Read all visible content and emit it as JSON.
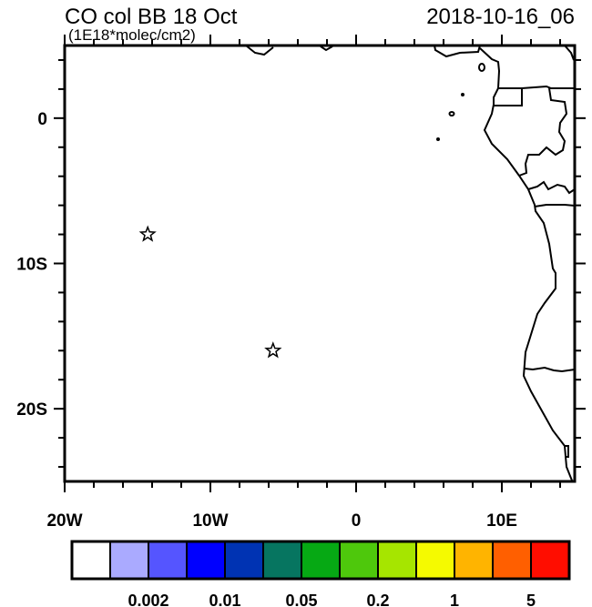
{
  "title": "CO col BB 18 Oct",
  "units": "(1E18*molec/cm2)",
  "date": "2018-10-16_06",
  "map": {
    "lon_range": [
      -20,
      15
    ],
    "lat_range": [
      -25,
      5
    ],
    "x_tick_labels": [
      {
        "lon": -20,
        "label": "20W"
      },
      {
        "lon": -10,
        "label": "10W"
      },
      {
        "lon": 0,
        "label": "0"
      },
      {
        "lon": 10,
        "label": "10E"
      }
    ],
    "y_tick_labels": [
      {
        "lat": 0,
        "label": "0"
      },
      {
        "lat": -10,
        "label": "10S"
      },
      {
        "lat": -20,
        "label": "20S"
      }
    ],
    "markers": [
      {
        "lon": -14.3,
        "lat": -8.0,
        "symbol": "star"
      },
      {
        "lon": -5.7,
        "lat": -16.0,
        "symbol": "star"
      }
    ]
  },
  "colorbar": {
    "colors": [
      "#ffffff",
      "#aaaaff",
      "#5555ff",
      "#0000ff",
      "#0033b3",
      "#067560",
      "#06a914",
      "#4ec80c",
      "#a6e500",
      "#f5fa00",
      "#ffb400",
      "#ff5f00",
      "#ff0d00"
    ],
    "labels": [
      {
        "boundary": 2,
        "label": "0.002"
      },
      {
        "boundary": 4,
        "label": "0.01"
      },
      {
        "boundary": 6,
        "label": "0.05"
      },
      {
        "boundary": 8,
        "label": "0.2"
      },
      {
        "boundary": 10,
        "label": "1"
      },
      {
        "boundary": 12,
        "label": "5"
      }
    ]
  }
}
